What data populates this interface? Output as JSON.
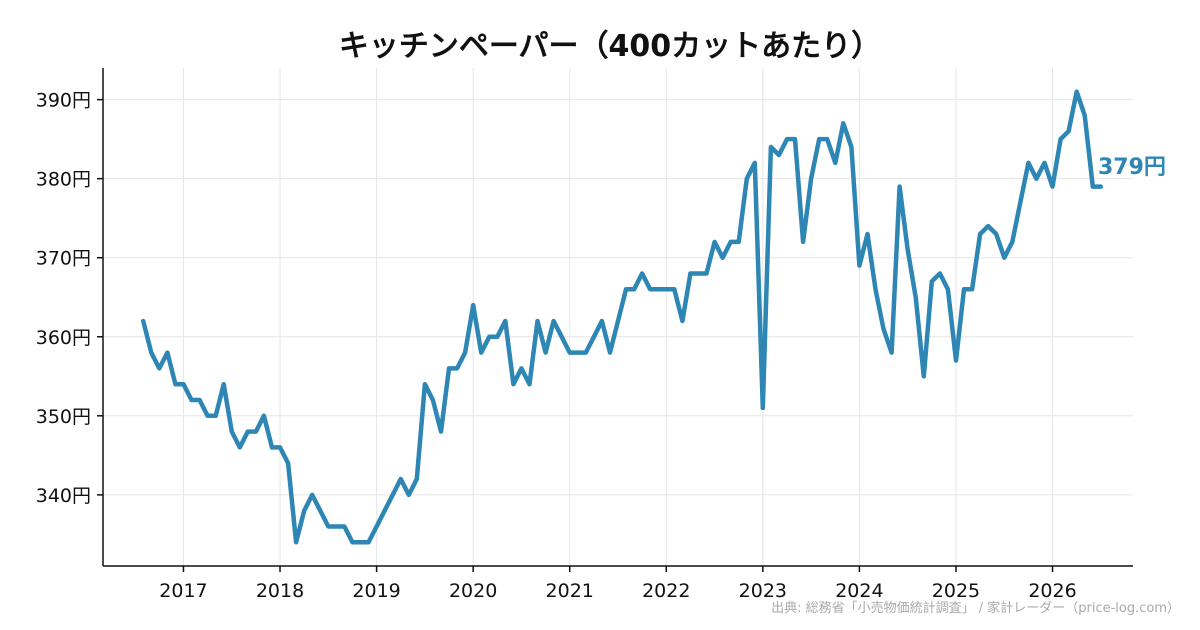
{
  "chart_data": {
    "type": "line",
    "title": "キッチンペーパー（400カットあたり）",
    "xlabel": "",
    "ylabel": "",
    "y_unit": "円",
    "xlim": [
      "2016-03",
      "2026-11"
    ],
    "ylim": [
      331,
      394
    ],
    "yticks": [
      340,
      350,
      360,
      370,
      380,
      390
    ],
    "ytick_labels": [
      "340円",
      "350円",
      "360円",
      "370円",
      "380円",
      "390円"
    ],
    "xticks": [
      "2017-01",
      "2018-01",
      "2019-01",
      "2020-01",
      "2021-01",
      "2022-01",
      "2023-01",
      "2024-01",
      "2025-01",
      "2026-01"
    ],
    "xtick_labels": [
      "2017",
      "2018",
      "2019",
      "2020",
      "2021",
      "2022",
      "2023",
      "2024",
      "2025",
      "2026"
    ],
    "grid": true,
    "color": "#2e86b5",
    "end_label": "379円",
    "source": "出典: 総務省「小売物価統計調査」 / 家計レーダー（price-log.com）",
    "series": [
      {
        "x": [
          "2016-08",
          "2016-09",
          "2016-10",
          "2016-11",
          "2016-12",
          "2017-01",
          "2017-02",
          "2017-03",
          "2017-04",
          "2017-05",
          "2017-06",
          "2017-07",
          "2017-08",
          "2017-09",
          "2017-10",
          "2017-11",
          "2017-12",
          "2018-01",
          "2018-02",
          "2018-03",
          "2018-04",
          "2018-05",
          "2018-06",
          "2018-07",
          "2018-08",
          "2018-09",
          "2018-10",
          "2018-11",
          "2018-12",
          "2019-01",
          "2019-02",
          "2019-03",
          "2019-04",
          "2019-05",
          "2019-06",
          "2019-07",
          "2019-08",
          "2019-09",
          "2019-10",
          "2019-11",
          "2019-12",
          "2020-01",
          "2020-02",
          "2020-03",
          "2020-04",
          "2020-05",
          "2020-06",
          "2020-07",
          "2020-08",
          "2020-09",
          "2020-10",
          "2020-11",
          "2020-12",
          "2021-01",
          "2021-02",
          "2021-03",
          "2021-04",
          "2021-05",
          "2021-06",
          "2021-07",
          "2021-08",
          "2021-09",
          "2021-10",
          "2021-11",
          "2021-12",
          "2022-01",
          "2022-02",
          "2022-03",
          "2022-04",
          "2022-05",
          "2022-06",
          "2022-07",
          "2022-08",
          "2022-09",
          "2022-10",
          "2022-11",
          "2022-12",
          "2023-01",
          "2023-02",
          "2023-03",
          "2023-04",
          "2023-05",
          "2023-06",
          "2023-07",
          "2023-08",
          "2023-09",
          "2023-10",
          "2023-11",
          "2023-12",
          "2024-01",
          "2024-02",
          "2024-03",
          "2024-04",
          "2024-05",
          "2024-06",
          "2024-07",
          "2024-08",
          "2024-09",
          "2024-10",
          "2024-11",
          "2024-12",
          "2025-01",
          "2025-02",
          "2025-03",
          "2025-04",
          "2025-05",
          "2025-06",
          "2025-07",
          "2025-08",
          "2025-09",
          "2025-10",
          "2025-11",
          "2025-12",
          "2026-01",
          "2026-02",
          "2026-03",
          "2026-04",
          "2026-05",
          "2026-06",
          "2026-07"
        ],
        "values": [
          362,
          358,
          356,
          358,
          354,
          354,
          352,
          352,
          350,
          350,
          354,
          348,
          346,
          348,
          348,
          350,
          346,
          346,
          344,
          334,
          338,
          340,
          338,
          336,
          336,
          336,
          334,
          334,
          334,
          336,
          338,
          340,
          342,
          340,
          342,
          354,
          352,
          348,
          356,
          356,
          358,
          364,
          358,
          360,
          360,
          362,
          354,
          356,
          354,
          362,
          358,
          362,
          360,
          358,
          358,
          358,
          360,
          362,
          358,
          362,
          366,
          366,
          368,
          366,
          366,
          366,
          366,
          362,
          368,
          368,
          368,
          372,
          370,
          372,
          372,
          380,
          382,
          351,
          384,
          383,
          385,
          385,
          372,
          380,
          385,
          385,
          382,
          387,
          384,
          369,
          373,
          366,
          361,
          358,
          379,
          371,
          365,
          355,
          367,
          368,
          366,
          357,
          366,
          366,
          373,
          374,
          373,
          370,
          372,
          377,
          382,
          380,
          382,
          379,
          385,
          386,
          391,
          388,
          379,
          379
        ]
      }
    ]
  }
}
